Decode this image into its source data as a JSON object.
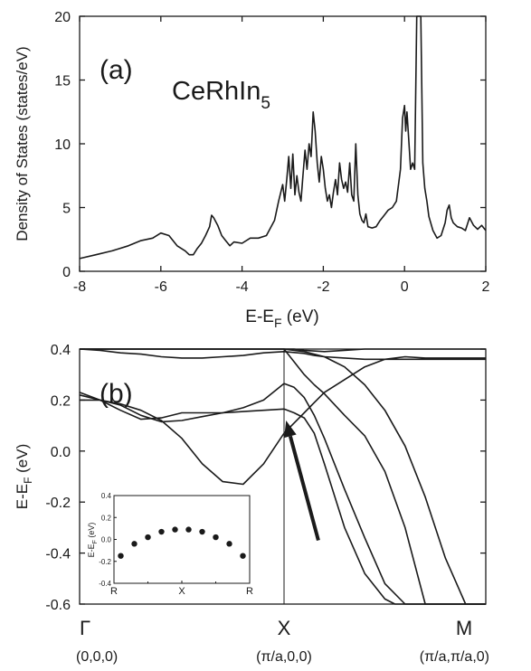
{
  "chart_data": [
    {
      "type": "line",
      "panel_label": "(a)",
      "annotation": {
        "text": "CeRhIn",
        "sub": "5"
      },
      "xlabel": {
        "text": "E-E",
        "sub": "F",
        "after": " (eV)"
      },
      "ylabel": "Density of States (states/eV)",
      "xlim": [
        -8,
        2
      ],
      "ylim": [
        0,
        20
      ],
      "xticks": [
        "-8",
        "-6",
        "-4",
        "-2",
        "0",
        "2"
      ],
      "yticks": [
        "0",
        "5",
        "10",
        "15",
        "20"
      ],
      "grid": false,
      "series": [
        {
          "x": [
            -8.0,
            -7.6,
            -7.2,
            -6.8,
            -6.5,
            -6.2,
            -6.0,
            -5.8,
            -5.6,
            -5.4,
            -5.3,
            -5.2,
            -5.1,
            -5.0,
            -4.9,
            -4.8,
            -4.75,
            -4.7,
            -4.6,
            -4.5,
            -4.4,
            -4.3,
            -4.2,
            -4.0,
            -3.8,
            -3.6,
            -3.4,
            -3.2,
            -3.1,
            -3.0,
            -2.95,
            -2.9,
            -2.85,
            -2.8,
            -2.75,
            -2.7,
            -2.65,
            -2.6,
            -2.55,
            -2.5,
            -2.45,
            -2.4,
            -2.35,
            -2.3,
            -2.25,
            -2.2,
            -2.15,
            -2.1,
            -2.05,
            -2.0,
            -1.95,
            -1.9,
            -1.85,
            -1.8,
            -1.75,
            -1.7,
            -1.65,
            -1.6,
            -1.55,
            -1.5,
            -1.45,
            -1.4,
            -1.35,
            -1.3,
            -1.25,
            -1.2,
            -1.15,
            -1.1,
            -1.05,
            -1.0,
            -0.95,
            -0.9,
            -0.8,
            -0.7,
            -0.6,
            -0.5,
            -0.4,
            -0.3,
            -0.2,
            -0.1,
            -0.05,
            0.0,
            0.03,
            0.06,
            0.1,
            0.15,
            0.2,
            0.25,
            0.3,
            0.33,
            0.36,
            0.4,
            0.45,
            0.5,
            0.55,
            0.6,
            0.7,
            0.8,
            0.9,
            1.0,
            1.05,
            1.1,
            1.15,
            1.2,
            1.3,
            1.4,
            1.5,
            1.6,
            1.7,
            1.8,
            1.9,
            2.0
          ],
          "y": [
            1.0,
            1.3,
            1.6,
            2.0,
            2.4,
            2.6,
            3.0,
            2.8,
            2.0,
            1.6,
            1.3,
            1.3,
            1.8,
            2.2,
            2.8,
            3.5,
            4.4,
            4.2,
            3.6,
            2.8,
            2.4,
            2.0,
            2.3,
            2.2,
            2.6,
            2.6,
            2.8,
            4.0,
            5.5,
            6.8,
            5.5,
            7.2,
            9.0,
            6.5,
            9.2,
            6.0,
            7.5,
            6.2,
            5.5,
            7.6,
            9.5,
            8.0,
            10.0,
            9.0,
            12.5,
            11.0,
            8.5,
            7.0,
            9.0,
            8.0,
            6.5,
            5.5,
            6.0,
            5.0,
            6.2,
            7.2,
            6.0,
            8.5,
            7.2,
            6.5,
            7.0,
            6.2,
            8.5,
            6.0,
            5.5,
            10.0,
            6.0,
            4.5,
            4.0,
            3.8,
            4.5,
            3.5,
            3.4,
            3.5,
            4.0,
            4.4,
            4.8,
            5.0,
            5.5,
            8.0,
            12.0,
            13.0,
            11.0,
            12.5,
            10.5,
            8.0,
            8.5,
            8.0,
            20.0,
            20.0,
            20.0,
            20.0,
            8.5,
            6.5,
            5.5,
            4.3,
            3.2,
            2.6,
            2.8,
            3.8,
            4.8,
            5.2,
            4.2,
            3.8,
            3.5,
            3.4,
            3.2,
            4.2,
            3.6,
            3.3,
            3.6,
            3.2
          ]
        }
      ]
    },
    {
      "type": "line",
      "panel_label": "(b)",
      "ylabel": {
        "text": "E-E",
        "sub": "F",
        "after": " (eV)"
      },
      "ylim": [
        -0.6,
        0.4
      ],
      "yticks": [
        "-0.6",
        "-0.4",
        "-0.2",
        "0.0",
        "0.2",
        "0.4"
      ],
      "xticks": [
        {
          "label": "Γ",
          "coord": "(0,0,0)",
          "x": 0
        },
        {
          "label": "X",
          "coord": "(π/a,0,0)",
          "x": 1
        },
        {
          "label": "M",
          "coord": "(π/a,π/a,0)",
          "x": 2
        }
      ],
      "vertical_line_at": 1,
      "arrow_annotation": {
        "from": [
          1.17,
          -0.35
        ],
        "to": [
          1.01,
          0.12
        ]
      },
      "grid": false,
      "bands": [
        {
          "x": [
            0,
            0.05,
            0.1,
            0.15,
            0.2,
            0.3,
            0.4,
            0.5,
            0.6,
            0.7,
            0.8,
            0.9,
            0.95,
            1.0,
            1.05,
            1.1,
            1.2,
            1.3,
            1.4,
            1.5,
            1.6,
            1.7,
            1.8,
            2.0
          ],
          "y": [
            0.4,
            0.4,
            0.4,
            0.4,
            0.4,
            0.4,
            0.4,
            0.4,
            0.4,
            0.4,
            0.4,
            0.4,
            0.4,
            0.4,
            0.4,
            0.395,
            0.39,
            0.395,
            0.4,
            0.4,
            0.4,
            0.4,
            0.4,
            0.4
          ]
        },
        {
          "x": [
            0,
            0.1,
            0.2,
            0.3,
            0.4,
            0.5,
            0.6,
            0.7,
            0.8,
            0.9,
            1.0,
            1.1,
            1.15,
            1.2,
            1.3,
            1.4,
            1.5,
            1.6,
            1.8,
            2.0
          ],
          "y": [
            0.4,
            0.395,
            0.385,
            0.38,
            0.37,
            0.365,
            0.365,
            0.37,
            0.375,
            0.385,
            0.39,
            0.383,
            0.375,
            0.37,
            0.365,
            0.36,
            0.36,
            0.36,
            0.36,
            0.36
          ]
        },
        {
          "x": [
            0,
            0.1,
            0.2,
            0.3,
            0.4,
            0.5,
            0.6,
            0.7,
            0.8,
            0.9,
            1.0,
            1.05,
            1.1,
            1.15,
            1.2,
            1.3,
            1.4,
            1.5,
            1.6,
            1.7,
            1.8,
            1.9,
            2.0
          ],
          "y": [
            0.2,
            0.2,
            0.185,
            0.16,
            0.12,
            0.05,
            -0.05,
            -0.12,
            -0.13,
            -0.05,
            0.07,
            0.11,
            0.15,
            0.19,
            0.23,
            0.28,
            0.33,
            0.36,
            0.37,
            0.365,
            0.365,
            0.365,
            0.365
          ]
        },
        {
          "x": [
            0,
            0.1,
            0.2,
            0.3,
            0.4,
            0.5,
            0.6,
            0.7,
            0.8,
            0.9,
            1.0,
            1.05,
            1.1,
            1.15,
            1.2,
            1.3,
            1.4,
            1.5,
            1.6,
            1.7,
            1.8,
            2.0
          ],
          "y": [
            0.22,
            0.2,
            0.18,
            0.14,
            0.115,
            0.12,
            0.135,
            0.15,
            0.17,
            0.2,
            0.265,
            0.25,
            0.21,
            0.14,
            0.05,
            -0.15,
            -0.34,
            -0.52,
            -0.6,
            -0.6,
            -0.6,
            -0.6
          ]
        },
        {
          "x": [
            0,
            0.1,
            0.2,
            0.3,
            0.4,
            0.5,
            0.6,
            0.7,
            0.8,
            0.9,
            1.0,
            1.05,
            1.1,
            1.15,
            1.2,
            1.3,
            1.4,
            1.5,
            1.55,
            1.6,
            1.8,
            2.0
          ],
          "y": [
            0.23,
            0.2,
            0.16,
            0.125,
            0.13,
            0.15,
            0.15,
            0.15,
            0.155,
            0.16,
            0.165,
            0.15,
            0.13,
            0.07,
            -0.05,
            -0.3,
            -0.48,
            -0.58,
            -0.6,
            -0.6,
            -0.6,
            -0.6
          ]
        },
        {
          "x": [
            0,
            0.1,
            0.2,
            0.3,
            0.4,
            0.5,
            0.6,
            0.7,
            0.8,
            0.9,
            1.0,
            1.05,
            1.1,
            1.15,
            1.2,
            1.25,
            1.3,
            1.4,
            1.5,
            1.6,
            1.7,
            1.8,
            1.9,
            2.0
          ],
          "y": [
            0.4,
            0.4,
            0.4,
            0.4,
            0.4,
            0.4,
            0.4,
            0.4,
            0.4,
            0.4,
            0.4,
            0.395,
            0.39,
            0.38,
            0.37,
            0.35,
            0.33,
            0.26,
            0.16,
            0.02,
            -0.18,
            -0.42,
            -0.6,
            -0.6
          ]
        },
        {
          "x": [
            0,
            0.1,
            0.2,
            0.3,
            0.4,
            0.5,
            0.6,
            0.7,
            0.8,
            0.9,
            1.0,
            1.1,
            1.15,
            1.2,
            1.3,
            1.4,
            1.5,
            1.6,
            1.7,
            1.8,
            1.9,
            2.0
          ],
          "y": [
            0.4,
            0.4,
            0.4,
            0.4,
            0.4,
            0.4,
            0.4,
            0.4,
            0.4,
            0.4,
            0.4,
            0.3,
            0.26,
            0.225,
            0.14,
            0.06,
            -0.08,
            -0.3,
            -0.6,
            -0.6,
            -0.6,
            -0.6
          ]
        }
      ],
      "inset": {
        "type": "scatter",
        "ylabel": {
          "text": "E-E",
          "sub": "F",
          "after": " (eV)"
        },
        "ylim": [
          -0.4,
          0.4
        ],
        "yticks": [
          "-0.4",
          "-0.2",
          "0.0",
          "0.2",
          "0.4"
        ],
        "xticks": [
          "R",
          "X",
          "R"
        ],
        "points": {
          "x": [
            0.05,
            0.15,
            0.25,
            0.35,
            0.45,
            0.55,
            0.65,
            0.75,
            0.85,
            0.95
          ],
          "y": [
            -0.15,
            -0.04,
            0.02,
            0.07,
            0.09,
            0.09,
            0.07,
            0.02,
            -0.04,
            -0.15
          ]
        }
      }
    }
  ]
}
